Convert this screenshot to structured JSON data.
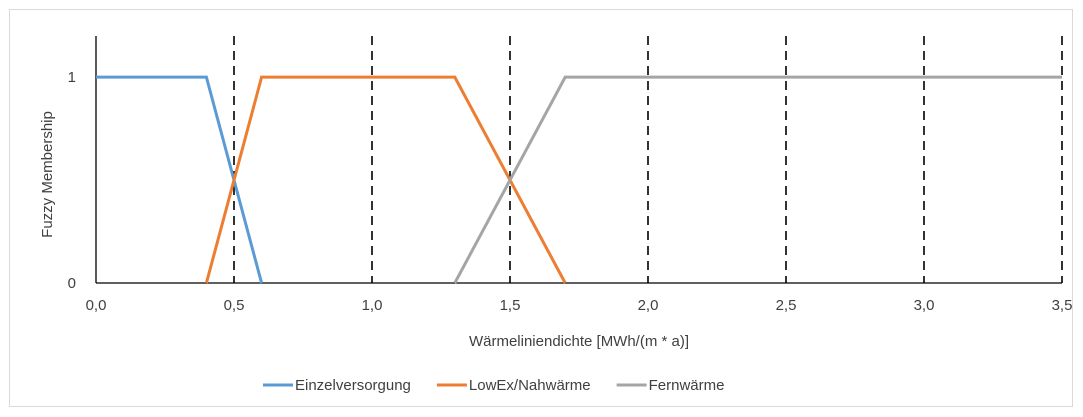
{
  "chart_data": {
    "type": "line",
    "title": "",
    "xlabel": "Wärmeliniendichte [MWh/(m * a)]",
    "ylabel": "Fuzzy Membership",
    "xlim": [
      0,
      3.5
    ],
    "ylim": [
      0,
      1
    ],
    "x_ticks": [
      0,
      0.5,
      1,
      1.5,
      2,
      2.5,
      3,
      3.5
    ],
    "x_tick_labels": [
      "0,0",
      "0,5",
      "1,0",
      "1,5",
      "2,0",
      "2,5",
      "3,0",
      "3,5"
    ],
    "y_ticks": [
      0,
      1
    ],
    "y_tick_labels": [
      "0",
      "1"
    ],
    "vertical_dashed_lines": [
      0.5,
      1.0,
      1.5,
      2.0,
      2.5,
      3.0,
      3.5
    ],
    "grid": false,
    "legend_position": "bottom",
    "series": [
      {
        "name": "Einzelversorgung",
        "color": "#5b9bd5",
        "x": [
          0,
          0.4,
          0.6
        ],
        "y": [
          1,
          1,
          0
        ]
      },
      {
        "name": "LowEx/Nahwärme",
        "color": "#ed7d31",
        "x": [
          0.4,
          0.6,
          1.3,
          1.7
        ],
        "y": [
          0,
          1,
          1,
          0
        ]
      },
      {
        "name": "Fernwärme",
        "color": "#a5a5a5",
        "x": [
          1.3,
          1.7,
          3.5
        ],
        "y": [
          0,
          1,
          1
        ]
      }
    ]
  }
}
